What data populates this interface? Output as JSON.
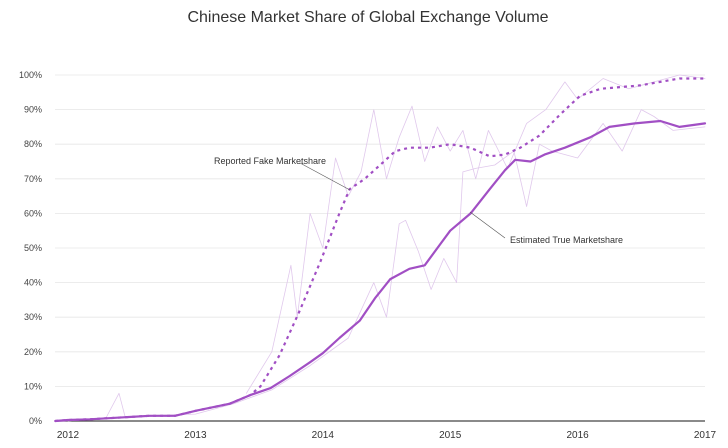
{
  "chart_data": {
    "type": "line",
    "title": "Chinese Market Share of Global Exchange Volume",
    "xlabel": "",
    "ylabel": "",
    "xlim": [
      2011.9,
      2017.0
    ],
    "ylim": [
      0,
      100
    ],
    "x_ticks": [
      2012,
      2013,
      2014,
      2015,
      2016,
      2017
    ],
    "x_tick_labels": [
      "2012",
      "2013",
      "2014",
      "2015",
      "2016",
      "2017"
    ],
    "y_ticks": [
      0,
      10,
      20,
      30,
      40,
      50,
      60,
      70,
      80,
      90,
      100
    ],
    "y_tick_labels": [
      "0%",
      "10%",
      "20%",
      "30%",
      "40%",
      "50%",
      "60%",
      "70%",
      "80%",
      "90%",
      "100%"
    ],
    "grid": true,
    "color": "#a14fc4",
    "raw_color": "#e0c8ec",
    "series": [
      {
        "name": "Estimated True Marketshare",
        "style": "solid",
        "x": [
          2011.9,
          2012.0,
          2012.17,
          2012.64,
          2012.84,
          2013.01,
          2013.27,
          2013.43,
          2013.59,
          2013.74,
          2013.9,
          2014.0,
          2014.13,
          2014.29,
          2014.41,
          2014.53,
          2014.68,
          2014.8,
          2014.92,
          2015.0,
          2015.16,
          2015.31,
          2015.43,
          2015.51,
          2015.63,
          2015.74,
          2015.9,
          2016.1,
          2016.25,
          2016.45,
          2016.65,
          2016.8,
          2017.0
        ],
        "y": [
          0,
          0.3,
          0.5,
          1.5,
          1.5,
          3,
          5,
          7.5,
          9.5,
          13,
          17,
          19.6,
          24,
          29,
          35.5,
          41,
          44,
          45,
          51,
          55,
          60,
          67,
          72.5,
          75.5,
          75,
          77,
          79,
          82,
          85,
          86,
          86.7,
          85,
          86
        ]
      },
      {
        "name": "Reported Fake Marketshare",
        "style": "dashed",
        "x": [
          2011.9,
          2012.0,
          2012.17,
          2012.64,
          2012.84,
          2013.01,
          2013.27,
          2013.43,
          2013.51,
          2013.66,
          2013.82,
          2013.98,
          2014.13,
          2014.21,
          2014.33,
          2014.45,
          2014.57,
          2014.68,
          2014.84,
          2015.0,
          2015.16,
          2015.31,
          2015.43,
          2015.55,
          2015.7,
          2015.86,
          2016.02,
          2016.18,
          2016.49,
          2016.8,
          2017.0
        ],
        "y": [
          0,
          0.3,
          0.5,
          1.5,
          1.5,
          3,
          5,
          7.5,
          10,
          19,
          32,
          46,
          60,
          67,
          70,
          74,
          78,
          79,
          79,
          80,
          79,
          76.5,
          77,
          79,
          82.5,
          88.5,
          94,
          96,
          97,
          99,
          99
        ]
      },
      {
        "name": "Estimated True raw",
        "style": "raw",
        "x": [
          2012.0,
          2012.3,
          2012.4,
          2012.45,
          2012.6,
          2013.0,
          2013.3,
          2013.6,
          2013.9,
          2014.2,
          2014.4,
          2014.5,
          2014.6,
          2014.65,
          2014.75,
          2014.85,
          2014.95,
          2015.05,
          2015.1,
          2015.2,
          2015.35,
          2015.5,
          2015.6,
          2015.7,
          2015.8,
          2016.0,
          2016.2,
          2016.35,
          2016.5,
          2016.6,
          2016.75,
          2017.0
        ],
        "y": [
          0,
          1,
          8,
          1,
          1.5,
          2,
          5,
          9,
          16,
          24,
          40,
          30,
          57,
          58,
          49,
          38,
          47,
          40,
          72,
          73,
          74,
          78,
          62,
          80,
          78,
          76,
          86,
          78,
          90,
          88,
          84,
          85
        ]
      },
      {
        "name": "Reported raw",
        "style": "raw",
        "x": [
          2013.4,
          2013.6,
          2013.75,
          2013.8,
          2013.9,
          2014.0,
          2014.1,
          2014.2,
          2014.3,
          2014.4,
          2014.5,
          2014.6,
          2014.7,
          2014.8,
          2014.9,
          2015.0,
          2015.1,
          2015.2,
          2015.3,
          2015.45,
          2015.6,
          2015.75,
          2015.9,
          2016.0,
          2016.2,
          2016.4,
          2016.6,
          2016.8,
          2017.0
        ],
        "y": [
          8,
          20,
          45,
          30,
          60,
          50,
          76,
          65,
          72,
          90,
          70,
          82,
          91,
          75,
          85,
          78,
          84,
          70,
          84,
          73,
          86,
          90,
          98,
          93,
          99,
          96,
          98,
          100,
          99
        ]
      }
    ],
    "annotations": [
      {
        "text": "Reported Fake Marketshare",
        "series": "Reported Fake Marketshare",
        "x": 2014.21,
        "y": 67
      },
      {
        "text": "Estimated True Marketshare",
        "series": "Estimated True Marketshare",
        "x": 2015.16,
        "y": 60
      }
    ]
  }
}
